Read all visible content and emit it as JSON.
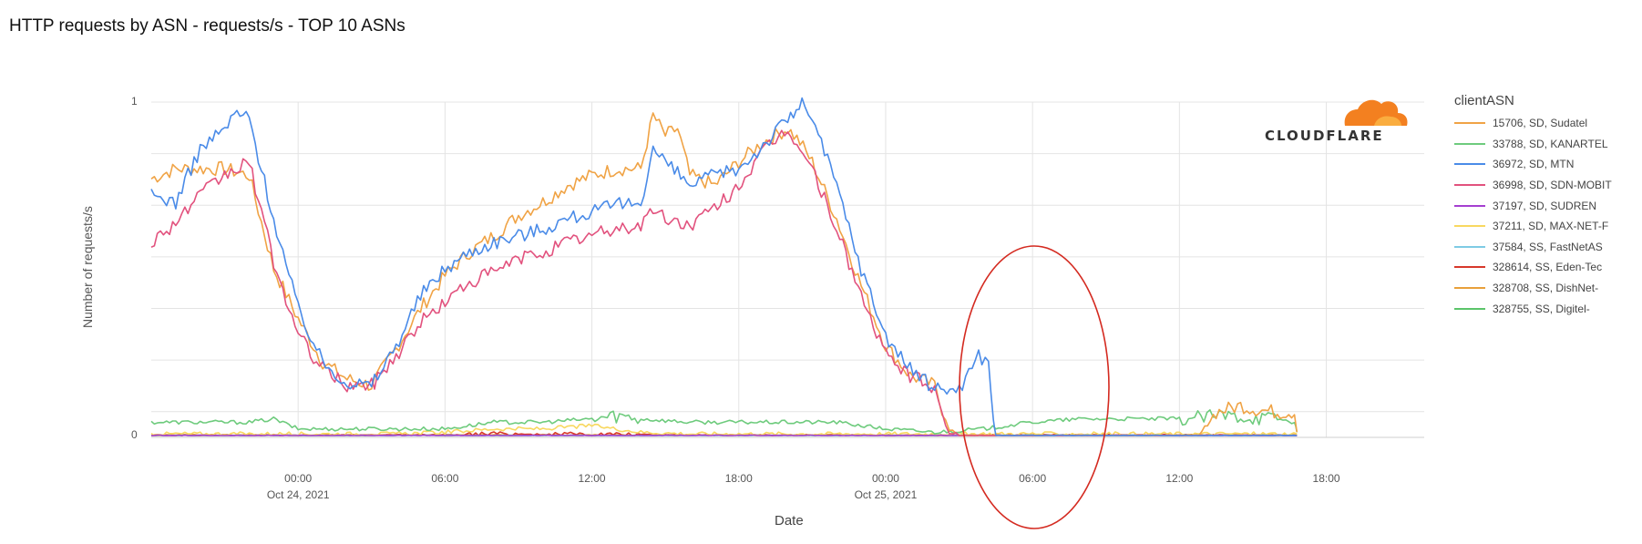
{
  "chart_data": {
    "type": "line",
    "title": "HTTP requests by ASN - requests/s - TOP 10 ASNs",
    "xlabel": "Date",
    "ylabel": "Number of requests/s",
    "ylim": [
      0,
      1
    ],
    "yticks": [
      "0",
      "1"
    ],
    "xticks": [
      {
        "label": "00:00",
        "sublabel": "Oct 24, 2021",
        "hour": 24
      },
      {
        "label": "06:00",
        "sublabel": "",
        "hour": 30
      },
      {
        "label": "12:00",
        "sublabel": "",
        "hour": 36
      },
      {
        "label": "18:00",
        "sublabel": "",
        "hour": 42
      },
      {
        "label": "00:00",
        "sublabel": "Oct 25, 2021",
        "hour": 48
      },
      {
        "label": "06:00",
        "sublabel": "",
        "hour": 54
      },
      {
        "label": "12:00",
        "sublabel": "",
        "hour": 60
      },
      {
        "label": "18:00",
        "sublabel": "",
        "hour": 66
      }
    ],
    "xlim_hours": [
      18,
      70
    ],
    "grid": true,
    "legend_title": "clientASN",
    "legend_position": "right",
    "series": [
      {
        "name": "15706, SD, Sudatel",
        "color": "#f0a345",
        "x": [
          18,
          19,
          20,
          21,
          22,
          23,
          24,
          25,
          26,
          27,
          28,
          29,
          30,
          31,
          32,
          33,
          34,
          35,
          36,
          37,
          38,
          38.5,
          39,
          39.5,
          40,
          41,
          42,
          43,
          44,
          44.5,
          45,
          46,
          47,
          48,
          49,
          50,
          50.3,
          50.6,
          51,
          52,
          54,
          56,
          58,
          60,
          60.8,
          61.5,
          62.5,
          63,
          64,
          64.7,
          64.8
        ],
        "y": [
          0.77,
          0.8,
          0.8,
          0.8,
          0.78,
          0.5,
          0.35,
          0.22,
          0.17,
          0.15,
          0.26,
          0.38,
          0.48,
          0.55,
          0.6,
          0.66,
          0.7,
          0.75,
          0.78,
          0.8,
          0.8,
          0.96,
          0.9,
          0.92,
          0.78,
          0.75,
          0.82,
          0.88,
          0.92,
          0.88,
          0.82,
          0.65,
          0.45,
          0.27,
          0.18,
          0.15,
          0.08,
          0.02,
          0.0,
          0.0,
          0.0,
          0.0,
          0.0,
          0.0,
          0.0,
          0.07,
          0.09,
          0.08,
          0.07,
          0.07,
          0.01
        ]
      },
      {
        "name": "33788, SD, KANARTEL",
        "color": "#6ecb7d",
        "x": [
          18,
          22,
          23,
          24,
          26,
          28,
          30,
          32,
          34,
          36,
          37,
          38,
          40,
          42,
          44,
          46,
          48,
          50,
          52,
          54,
          56,
          58,
          60,
          62,
          64,
          64.7,
          64.8
        ],
        "y": [
          0.04,
          0.04,
          0.05,
          0.02,
          0.02,
          0.02,
          0.02,
          0.04,
          0.04,
          0.05,
          0.06,
          0.05,
          0.04,
          0.04,
          0.04,
          0.04,
          0.02,
          0.01,
          0.02,
          0.04,
          0.05,
          0.05,
          0.05,
          0.06,
          0.05,
          0.04,
          0.01
        ]
      },
      {
        "name": "36972, SD, MTN",
        "color": "#4a8be8",
        "x": [
          18,
          19,
          20,
          21,
          21.5,
          22,
          23,
          24,
          25,
          26,
          27,
          28,
          29,
          30,
          31,
          32,
          33,
          34,
          35,
          36,
          37,
          38,
          38.5,
          39,
          40,
          41,
          42,
          43,
          44,
          44.7,
          45,
          46,
          47,
          48,
          49,
          50,
          51,
          51.8,
          52.2,
          52.4,
          52.5,
          54,
          56,
          58,
          60,
          62,
          64,
          64.8
        ],
        "y": [
          0.72,
          0.7,
          0.86,
          0.92,
          0.97,
          0.95,
          0.65,
          0.38,
          0.22,
          0.16,
          0.15,
          0.27,
          0.42,
          0.5,
          0.55,
          0.58,
          0.6,
          0.62,
          0.65,
          0.67,
          0.69,
          0.7,
          0.86,
          0.82,
          0.75,
          0.78,
          0.8,
          0.87,
          0.95,
          1.0,
          0.95,
          0.75,
          0.5,
          0.3,
          0.2,
          0.14,
          0.14,
          0.24,
          0.22,
          0.05,
          0.0,
          0.0,
          0.0,
          0.0,
          0.0,
          0.0,
          0.0,
          0.0
        ]
      },
      {
        "name": "36998, SD, SDN-MOBIT",
        "color": "#e2527e",
        "x": [
          18,
          19,
          20,
          21,
          22,
          23,
          24,
          25,
          26,
          27,
          28,
          29,
          30,
          31,
          32,
          33,
          34,
          35,
          36,
          37,
          38,
          38.5,
          39,
          40,
          41,
          42,
          43,
          44,
          45,
          46,
          47,
          48,
          49,
          50,
          50.3,
          50.6,
          51,
          54,
          58,
          62,
          64.8
        ],
        "y": [
          0.58,
          0.64,
          0.72,
          0.78,
          0.82,
          0.52,
          0.3,
          0.2,
          0.15,
          0.15,
          0.24,
          0.34,
          0.4,
          0.46,
          0.49,
          0.53,
          0.55,
          0.58,
          0.6,
          0.62,
          0.63,
          0.68,
          0.65,
          0.63,
          0.68,
          0.75,
          0.85,
          0.92,
          0.8,
          0.62,
          0.42,
          0.24,
          0.18,
          0.14,
          0.06,
          0.01,
          0.0,
          0.0,
          0.0,
          0.0,
          0.0
        ]
      },
      {
        "name": "37197, SD, SUDREN",
        "color": "#a53fd0",
        "x": [
          18,
          30,
          36,
          40,
          48,
          56,
          64.8
        ],
        "y": [
          0.0,
          0.0,
          0.0,
          0.0,
          0.0,
          0.0,
          0.0
        ]
      },
      {
        "name": "37211, SD, MAX-NET-F",
        "color": "#f8d860",
        "x": [
          18,
          24,
          28,
          30,
          32,
          34,
          36,
          38,
          40,
          42,
          44,
          48,
          52,
          56,
          60,
          64.8
        ],
        "y": [
          0.005,
          0.005,
          0.005,
          0.01,
          0.02,
          0.02,
          0.03,
          0.01,
          0.005,
          0.005,
          0.005,
          0.005,
          0.005,
          0.005,
          0.005,
          0.005
        ]
      },
      {
        "name": "37584, SS, FastNetAS",
        "color": "#7ecbe4",
        "x": [
          18,
          30,
          40,
          50,
          60,
          64.8
        ],
        "y": [
          0.0,
          0.0,
          0.0,
          0.0,
          0.0,
          0.0
        ]
      },
      {
        "name": "328614, SS, Eden-Tec",
        "color": "#d7382b",
        "x": [
          18,
          30,
          32,
          34,
          36,
          40,
          50,
          54,
          56,
          60,
          64.8
        ],
        "y": [
          0.0,
          0.002,
          0.006,
          0.004,
          0.004,
          0.002,
          0.0,
          0.002,
          0.002,
          0.002,
          0.0
        ]
      },
      {
        "name": "328708, SS, DishNet-",
        "color": "#e8a03a",
        "x": [
          18,
          30,
          40,
          50,
          60,
          64.8
        ],
        "y": [
          0.002,
          0.002,
          0.002,
          0.002,
          0.002,
          0.002
        ]
      },
      {
        "name": "328755, SS, Digitel-",
        "color": "#5bc46a",
        "x": [
          18,
          30,
          40,
          50,
          60,
          64.8
        ],
        "y": [
          0.0,
          0.0,
          0.0,
          0.0,
          0.0,
          0.0
        ]
      }
    ]
  },
  "logo": {
    "text": "CLOUDFLARE",
    "name": "cloudflare-logo"
  },
  "annotation": {
    "type": "ellipse",
    "color": "#d42a20"
  }
}
